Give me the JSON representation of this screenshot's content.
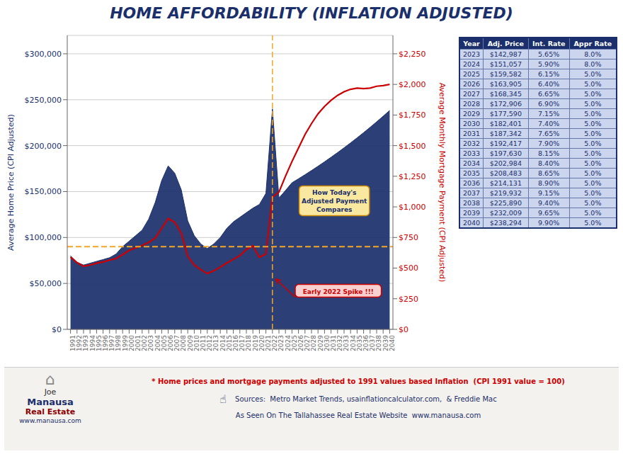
{
  "chart_data": {
    "type": "line",
    "title": "HOME AFFORDABILITY (INFLATION ADJUSTED)",
    "ylabel": "Average Home Price (CPI Adjusted)",
    "y2label": "Average Monthly Mortgage Payment (CPI Adjusted)",
    "x": [
      1991,
      1992,
      1993,
      1994,
      1995,
      1996,
      1997,
      1998,
      1999,
      2000,
      2001,
      2002,
      2003,
      2004,
      2005,
      2006,
      2007,
      2008,
      2009,
      2010,
      2011,
      2012,
      2013,
      2014,
      2015,
      2016,
      2017,
      2018,
      2019,
      2020,
      2021,
      2022,
      2023,
      2024,
      2025,
      2026,
      2027,
      2028,
      2029,
      2030,
      2031,
      2032,
      2033,
      2034,
      2035,
      2036,
      2037,
      2038,
      2039,
      2040
    ],
    "series": [
      {
        "type": "area",
        "color": "#1a2f6b",
        "values": [
          80000,
          73000,
          70000,
          72000,
          74000,
          76000,
          78000,
          82000,
          90000,
          96000,
          102000,
          108000,
          120000,
          138000,
          162000,
          178000,
          170000,
          152000,
          118000,
          102000,
          93000,
          88000,
          93000,
          100000,
          110000,
          117000,
          122000,
          127000,
          132000,
          136000,
          148000,
          240000,
          142987,
          151057,
          159582,
          163905,
          168345,
          172906,
          177590,
          182401,
          187342,
          192417,
          197630,
          202984,
          208483,
          214131,
          219932,
          225890,
          232009,
          238294
        ]
      },
      {
        "type": "line",
        "axis": "y2",
        "color": "#cc0000",
        "values": [
          590,
          545,
          515,
          525,
          540,
          550,
          565,
          578,
          610,
          645,
          665,
          685,
          710,
          745,
          825,
          905,
          875,
          785,
          595,
          525,
          488,
          455,
          478,
          508,
          542,
          572,
          602,
          652,
          682,
          588,
          615,
          1080,
          1120,
          1250,
          1370,
          1480,
          1590,
          1680,
          1760,
          1820,
          1870,
          1910,
          1940,
          1960,
          1970,
          1965,
          1970,
          1985,
          1990,
          2000
        ]
      }
    ],
    "xlim": [
      1990.5,
      2040.5
    ],
    "xticks": [
      1991,
      1992,
      1993,
      1994,
      1995,
      1996,
      1997,
      1998,
      1999,
      2000,
      2001,
      2002,
      2003,
      2004,
      2005,
      2006,
      2007,
      2008,
      2009,
      2010,
      2011,
      2012,
      2013,
      2014,
      2015,
      2016,
      2017,
      2018,
      2019,
      2020,
      2021,
      2022,
      2023,
      2024,
      2025,
      2026,
      2027,
      2028,
      2029,
      2030,
      2031,
      2032,
      2033,
      2034,
      2035,
      2036,
      2037,
      2038,
      2039,
      2040
    ],
    "ylim": [
      0,
      320000
    ],
    "yticks": [
      {
        "value": 0,
        "label": "$0"
      },
      {
        "value": 50000,
        "label": "$50,000"
      },
      {
        "value": 100000,
        "label": "$100,000"
      },
      {
        "value": 150000,
        "label": "$150,000"
      },
      {
        "value": 200000,
        "label": "$200,000"
      },
      {
        "value": 250000,
        "label": "$250,000"
      },
      {
        "value": 300000,
        "label": "$300,000"
      }
    ],
    "y2lim": [
      0,
      2400
    ],
    "y2ticks": [
      {
        "value": 0,
        "label": "$0"
      },
      {
        "value": 250,
        "label": "$250"
      },
      {
        "value": 500,
        "label": "$500"
      },
      {
        "value": 750,
        "label": "$750"
      },
      {
        "value": 1000,
        "label": "$1,000"
      },
      {
        "value": 1250,
        "label": "$1,250"
      },
      {
        "value": 1500,
        "label": "$1,500"
      },
      {
        "value": 1750,
        "label": "$1,750"
      },
      {
        "value": 2000,
        "label": "$2,000"
      },
      {
        "value": 2250,
        "label": "$2,250"
      }
    ],
    "grid": true,
    "reference_lines": [
      {
        "axis": "y",
        "value": 90000,
        "color": "#f5a623",
        "line_style": "dashed"
      },
      {
        "axis": "x",
        "value": 2022,
        "color": "#f5a623",
        "line_style": "dashed"
      }
    ],
    "annotations": [
      {
        "text": "Early 2022 Spike !!!",
        "x": 2025.5,
        "y": 35000,
        "arrow_to": {
          "x": 2022.5,
          "y": 55000
        }
      },
      {
        "text": "How Today's\nAdjusted Payment\nCompares",
        "x": 2031.5,
        "y": 140000
      }
    ],
    "table": {
      "headers": [
        "Year",
        "Adj. Price",
        "Int. Rate",
        "Appr Rate"
      ],
      "rows": [
        [
          "2023",
          "$142,987",
          "5.65%",
          "8.0%"
        ],
        [
          "2024",
          "$151,057",
          "5.90%",
          "8.0%"
        ],
        [
          "2025",
          "$159,582",
          "6.15%",
          "5.0%"
        ],
        [
          "2026",
          "$163,905",
          "6.40%",
          "5.0%"
        ],
        [
          "2027",
          "$168,345",
          "6.65%",
          "5.0%"
        ],
        [
          "2028",
          "$172,906",
          "6.90%",
          "5.0%"
        ],
        [
          "2029",
          "$177,590",
          "7.15%",
          "5.0%"
        ],
        [
          "2030",
          "$182,401",
          "7.40%",
          "5.0%"
        ],
        [
          "2031",
          "$187,342",
          "7.65%",
          "5.0%"
        ],
        [
          "2032",
          "$192,417",
          "7.90%",
          "5.0%"
        ],
        [
          "2033",
          "$197,630",
          "8.15%",
          "5.0%"
        ],
        [
          "2034",
          "$202,984",
          "8.40%",
          "5.0%"
        ],
        [
          "2035",
          "$208,483",
          "8.65%",
          "5.0%"
        ],
        [
          "2036",
          "$214,131",
          "8.90%",
          "5.0%"
        ],
        [
          "2037",
          "$219,932",
          "9.15%",
          "5.0%"
        ],
        [
          "2038",
          "$225,890",
          "9.40%",
          "5.0%"
        ],
        [
          "2039",
          "$232,009",
          "9.65%",
          "5.0%"
        ],
        [
          "2040",
          "$238,294",
          "9.90%",
          "5.0%"
        ]
      ]
    },
    "footer": {
      "note": "* Home prices and mortgage payments adjusted to 1991 values based Inflation  (CPI 1991 value = 100)",
      "sources": "Sources:  Metro Market Trends, usainflationcalculator.com,  & Freddie Mac",
      "website": "As Seen On The Tallahassee Real Estate Website  www.manausa.com",
      "icon": "☝",
      "logo": [
        "⌂",
        "Joe",
        "Manausa",
        "Real Estate",
        "www.manausa.com"
      ]
    }
  }
}
